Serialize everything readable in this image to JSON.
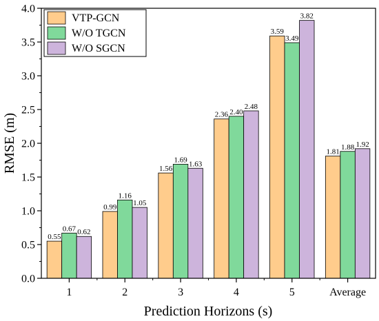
{
  "chart_data": {
    "type": "bar",
    "xlabel": "Prediction Horizons (s)",
    "ylabel": "RMSE (m)",
    "ylim": [
      0.0,
      4.0
    ],
    "yticks": [
      "0.0",
      "0.5",
      "1.0",
      "1.5",
      "2.0",
      "2.5",
      "3.0",
      "3.5",
      "4.0"
    ],
    "categories": [
      "1",
      "2",
      "3",
      "4",
      "5",
      "Average"
    ],
    "legend_position": "top-left",
    "grid": false,
    "series": [
      {
        "name": "VTP-GCN",
        "color": "#FFCC8C",
        "values": [
          0.55,
          0.99,
          1.56,
          2.36,
          3.59,
          1.81
        ],
        "labels": [
          "0.55",
          "0.99",
          "1.56",
          "2.36",
          "3.59",
          "1.81"
        ]
      },
      {
        "name": "W/O TGCN",
        "color": "#80D99B",
        "values": [
          0.67,
          1.16,
          1.69,
          2.4,
          3.49,
          1.88
        ],
        "labels": [
          "0.67",
          "1.16",
          "1.69",
          "2.40",
          "3.49",
          "1.88"
        ]
      },
      {
        "name": "W/O SGCN",
        "color": "#CDB4DC",
        "values": [
          0.62,
          1.05,
          1.63,
          2.48,
          3.82,
          1.92
        ],
        "labels": [
          "0.62",
          "1.05",
          "1.63",
          "2.48",
          "3.82",
          "1.92"
        ]
      }
    ]
  }
}
